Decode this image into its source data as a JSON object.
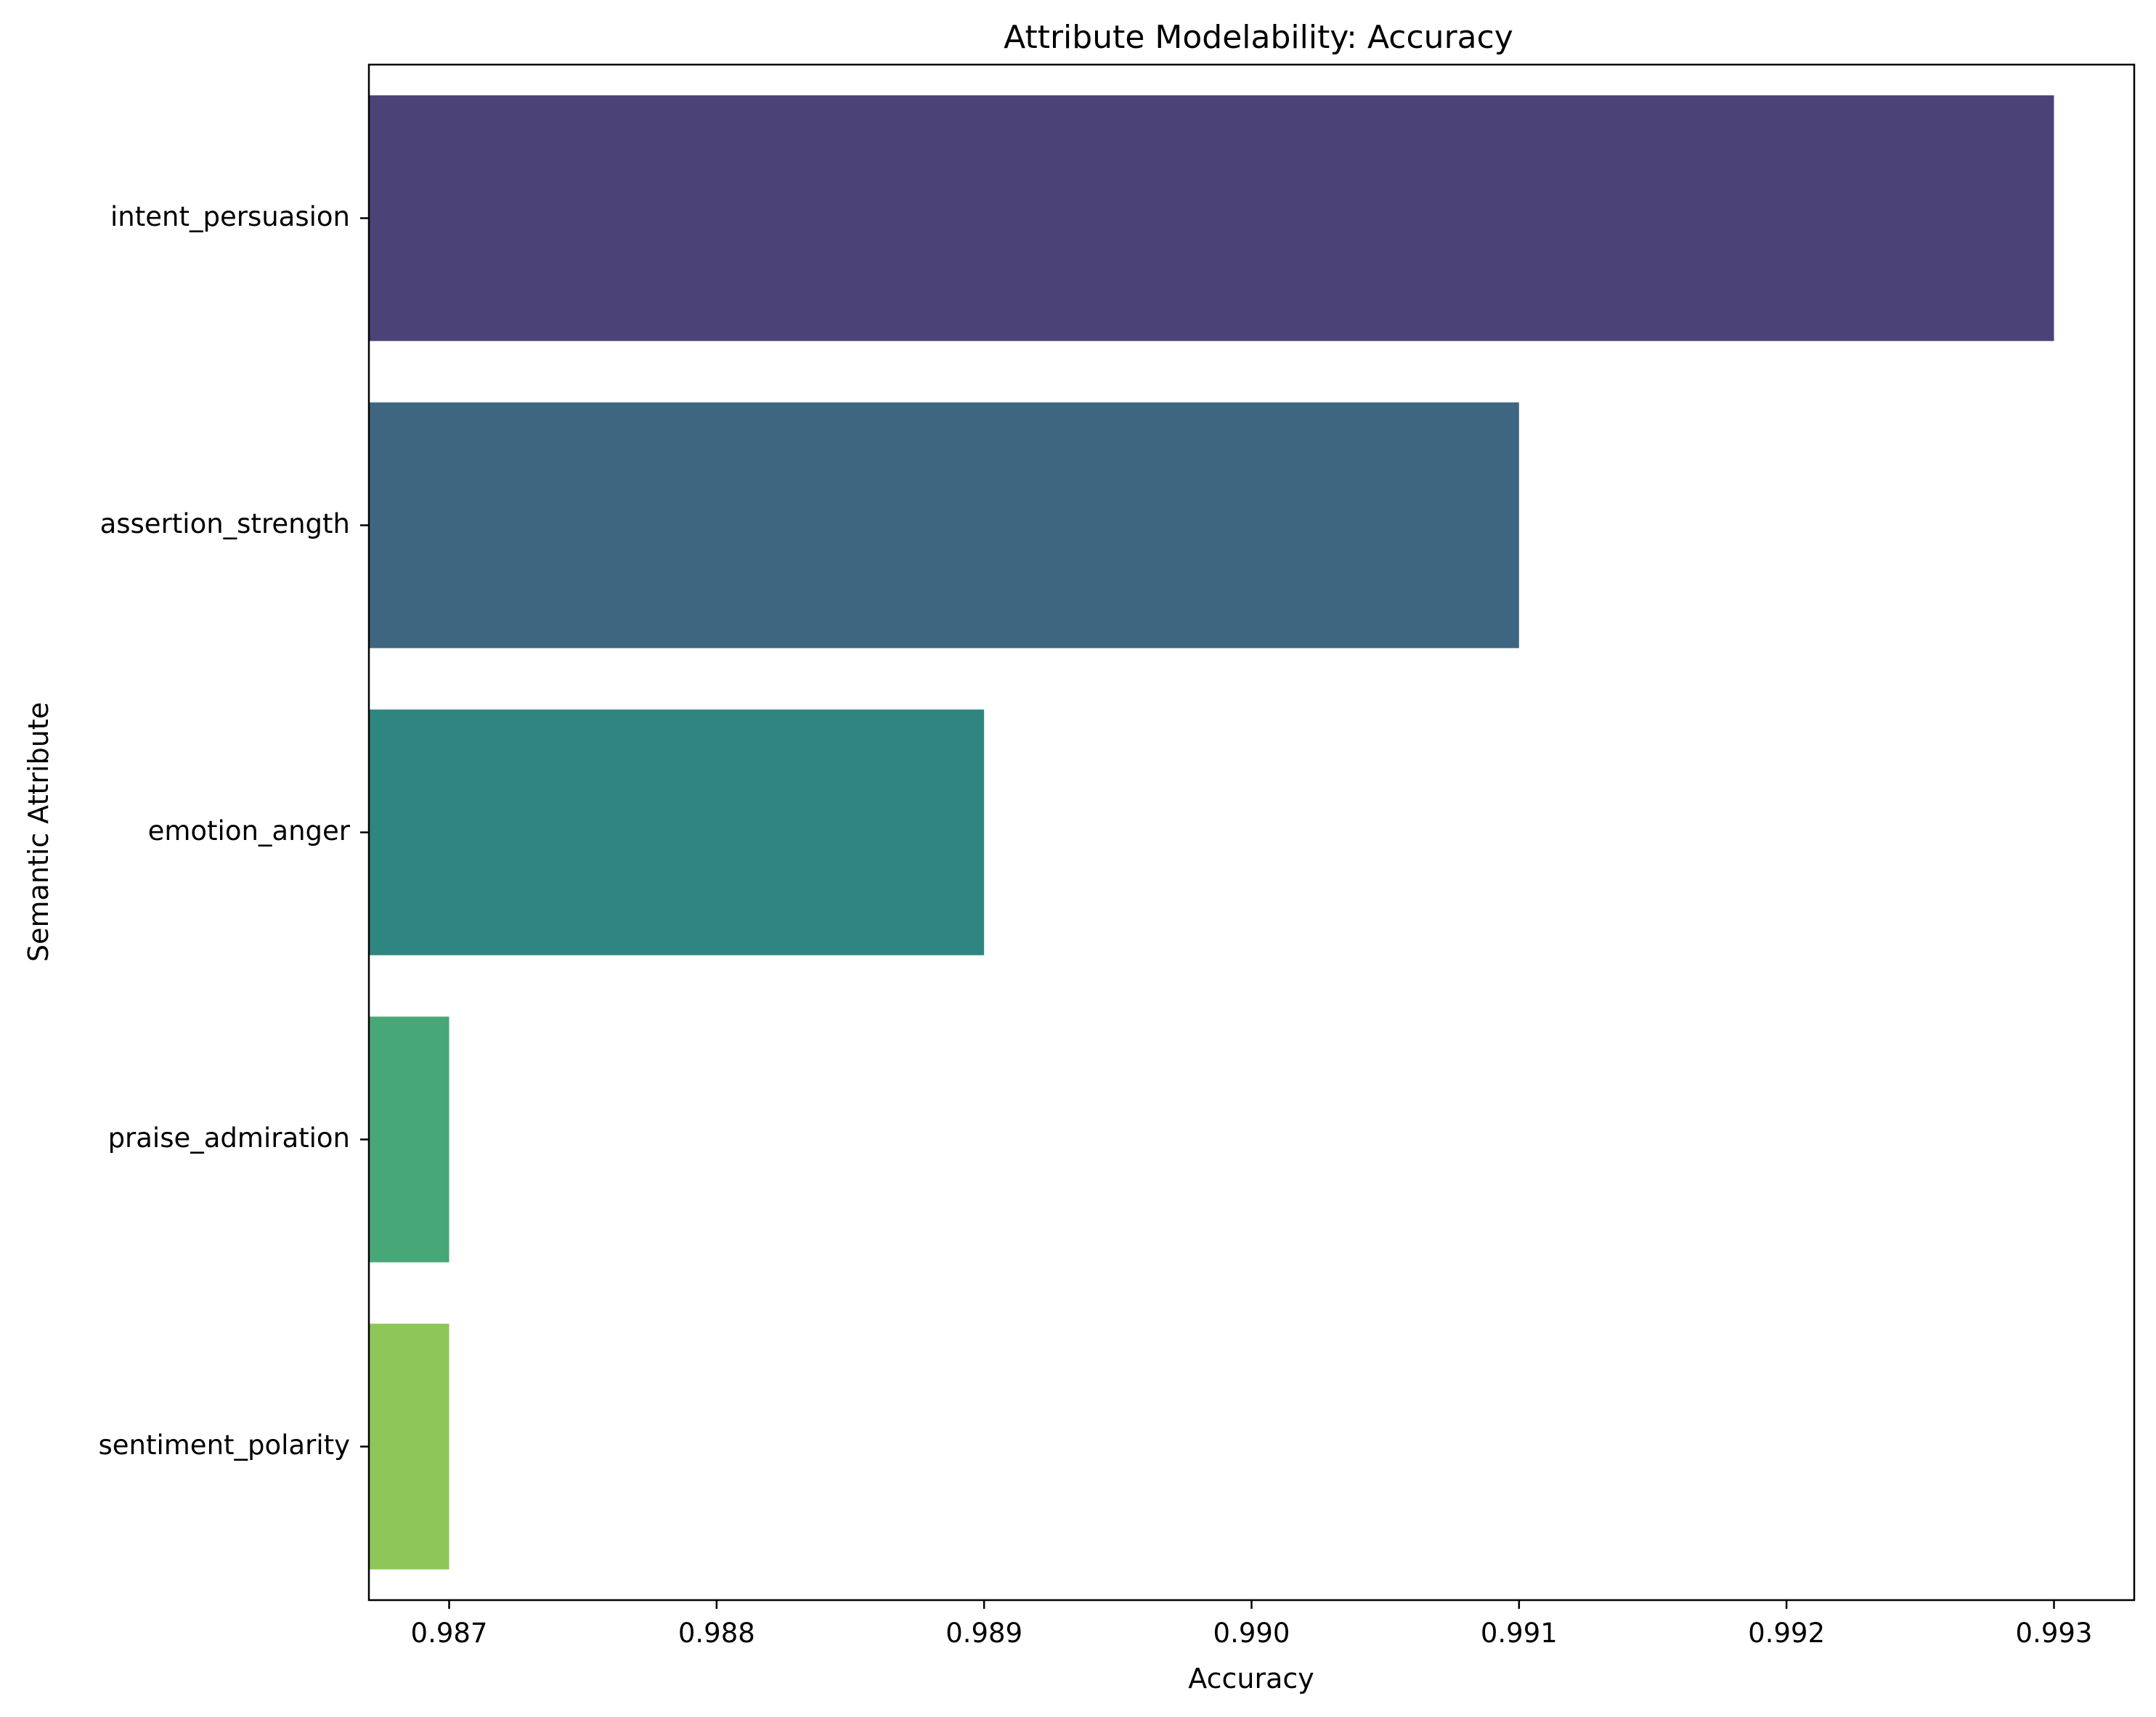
{
  "chart_data": {
    "type": "bar",
    "orientation": "horizontal",
    "title": "Attribute Modelability: Accuracy",
    "xlabel": "Accuracy",
    "ylabel": "Semantic Attribute",
    "categories": [
      "intent_persuasion",
      "assertion_strength",
      "emotion_anger",
      "praise_admiration",
      "sentiment_polarity"
    ],
    "values": [
      0.993,
      0.991,
      0.989,
      0.987,
      0.987
    ],
    "colors": [
      "#4b4277",
      "#3f6681",
      "#2f857f",
      "#48a777",
      "#8ec558"
    ],
    "xlim": [
      0.9867,
      0.9933
    ],
    "xticks": [
      "0.987",
      "0.988",
      "0.989",
      "0.990",
      "0.991",
      "0.992",
      "0.993"
    ],
    "grid": false,
    "legend": "none"
  }
}
